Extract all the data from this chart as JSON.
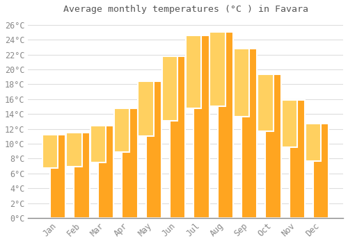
{
  "title": "Average monthly temperatures (°C ) in Favara",
  "months": [
    "Jan",
    "Feb",
    "Mar",
    "Apr",
    "May",
    "Jun",
    "Jul",
    "Aug",
    "Sep",
    "Oct",
    "Nov",
    "Dec"
  ],
  "values": [
    11.2,
    11.5,
    12.4,
    14.8,
    18.4,
    21.8,
    24.6,
    25.1,
    22.8,
    19.4,
    15.9,
    12.7
  ],
  "bar_color_bottom": "#FFA520",
  "bar_color_top": "#FFD060",
  "bar_edge_color": "#FFFFFF",
  "background_color": "#FFFFFF",
  "grid_color": "#DDDDDD",
  "tick_label_color": "#888888",
  "title_color": "#555555",
  "ylim": [
    0,
    27
  ],
  "ytick_step": 2,
  "figsize": [
    5.0,
    3.5
  ],
  "dpi": 100
}
